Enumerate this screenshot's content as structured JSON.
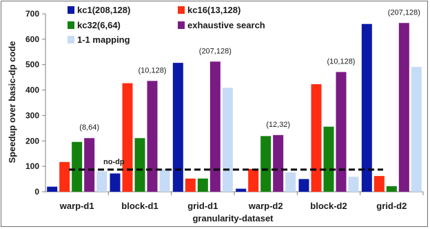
{
  "chart_data": {
    "type": "bar",
    "ylabel": "Speedup over basic-dp code",
    "xlabel": "granularity-dataset",
    "ylim": [
      0,
      700
    ],
    "yticks": [
      0,
      100,
      200,
      300,
      400,
      500,
      600,
      700
    ],
    "grid": false,
    "legend_position": "top",
    "categories": [
      "warp-d1",
      "block-d1",
      "grid-d1",
      "warp-d2",
      "block-d2",
      "grid-d2"
    ],
    "series": [
      {
        "name": "kc1(208,128)",
        "color": "#0b1aa6",
        "values": [
          20,
          72,
          507,
          12,
          50,
          660
        ]
      },
      {
        "name": "kc16(13,128)",
        "color": "#ff2d12",
        "values": [
          117,
          427,
          52,
          90,
          423,
          62
        ]
      },
      {
        "name": "kc32(6,64)",
        "color": "#14820f",
        "values": [
          196,
          211,
          52,
          219,
          256,
          22
        ]
      },
      {
        "name": "exhaustive search",
        "color": "#7a1b84",
        "values": [
          211,
          436,
          512,
          223,
          471,
          664
        ]
      },
      {
        "name": "1-1 mapping",
        "color": "#c6dbf5",
        "values": [
          80,
          88,
          409,
          76,
          59,
          491
        ]
      }
    ],
    "reference_line": {
      "label": "no-dp",
      "value": 87
    },
    "annotations": [
      {
        "category": "warp-d1",
        "text": "(8,64)"
      },
      {
        "category": "block-d1",
        "text": "(10,128)"
      },
      {
        "category": "grid-d1",
        "text": "(207,128)"
      },
      {
        "category": "warp-d2",
        "text": "(12,32)"
      },
      {
        "category": "block-d2",
        "text": "(10,128)"
      },
      {
        "category": "grid-d2",
        "text": "(207,128)"
      }
    ]
  }
}
